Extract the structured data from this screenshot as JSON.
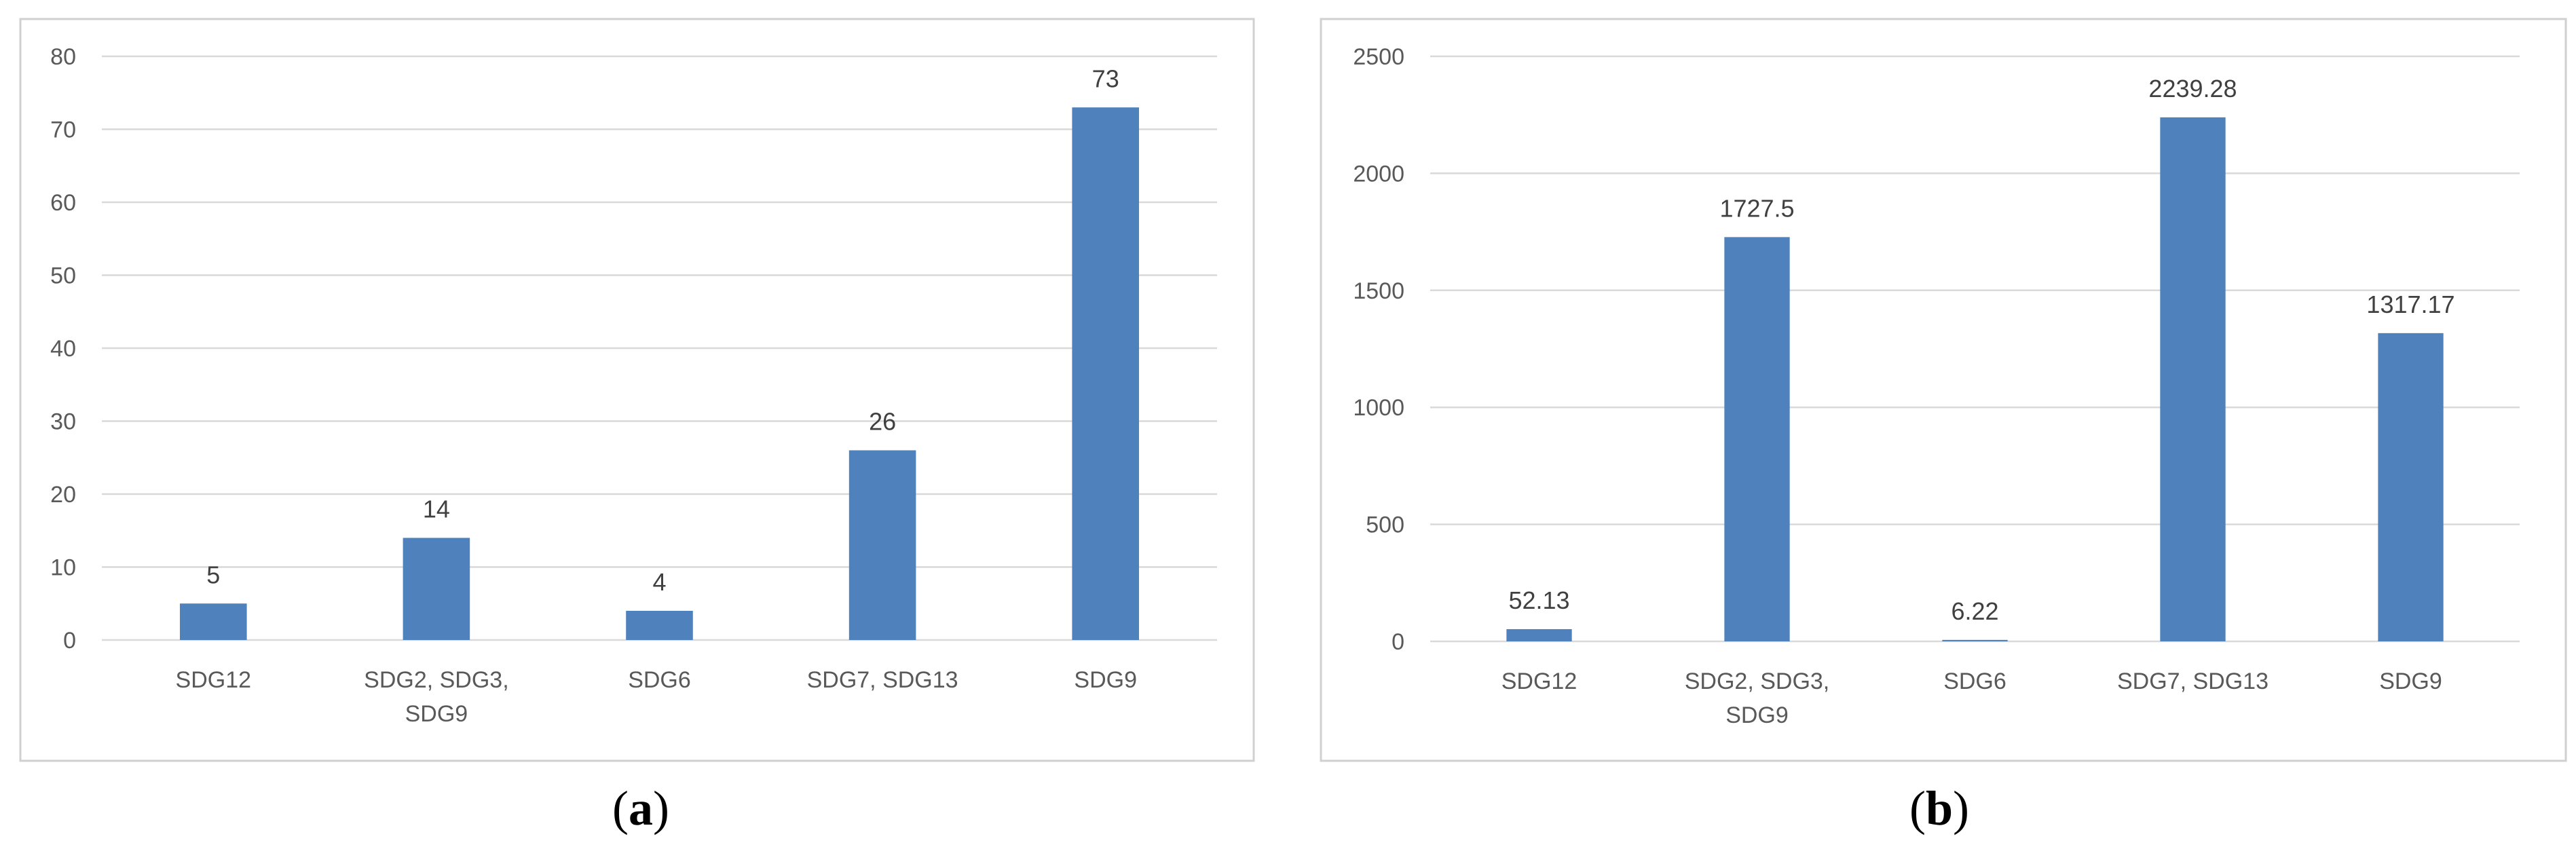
{
  "chart_data": [
    {
      "type": "bar",
      "panel_label": "(a)",
      "panel_letter": "a",
      "categories": [
        [
          "SDG12"
        ],
        [
          "SDG2, SDG3,",
          "SDG9"
        ],
        [
          "SDG6"
        ],
        [
          "SDG7, SDG13"
        ],
        [
          "SDG9"
        ]
      ],
      "values": [
        5,
        14,
        4,
        26,
        73
      ],
      "value_labels": [
        "5",
        "14",
        "4",
        "26",
        "73"
      ],
      "ylim": [
        0,
        80
      ],
      "yticks": [
        0,
        10,
        20,
        30,
        40,
        50,
        60,
        70,
        80
      ],
      "bar_color": "#4f81bd",
      "grid": true,
      "legend": "none",
      "title": "",
      "xlabel": "",
      "ylabel": ""
    },
    {
      "type": "bar",
      "panel_label": "(b)",
      "panel_letter": "b",
      "categories": [
        [
          "SDG12"
        ],
        [
          "SDG2, SDG3,",
          "SDG9"
        ],
        [
          "SDG6"
        ],
        [
          "SDG7, SDG13"
        ],
        [
          "SDG9"
        ]
      ],
      "values": [
        52.13,
        1727.5,
        6.22,
        2239.28,
        1317.17
      ],
      "value_labels": [
        "52.13",
        "1727.5",
        "6.22",
        "2239.28",
        "1317.17"
      ],
      "ylim": [
        0,
        2500
      ],
      "yticks": [
        0,
        500,
        1000,
        1500,
        2000,
        2500
      ],
      "bar_color": "#4f81bd",
      "grid": true,
      "legend": "none",
      "title": "",
      "xlabel": "",
      "ylabel": ""
    }
  ]
}
